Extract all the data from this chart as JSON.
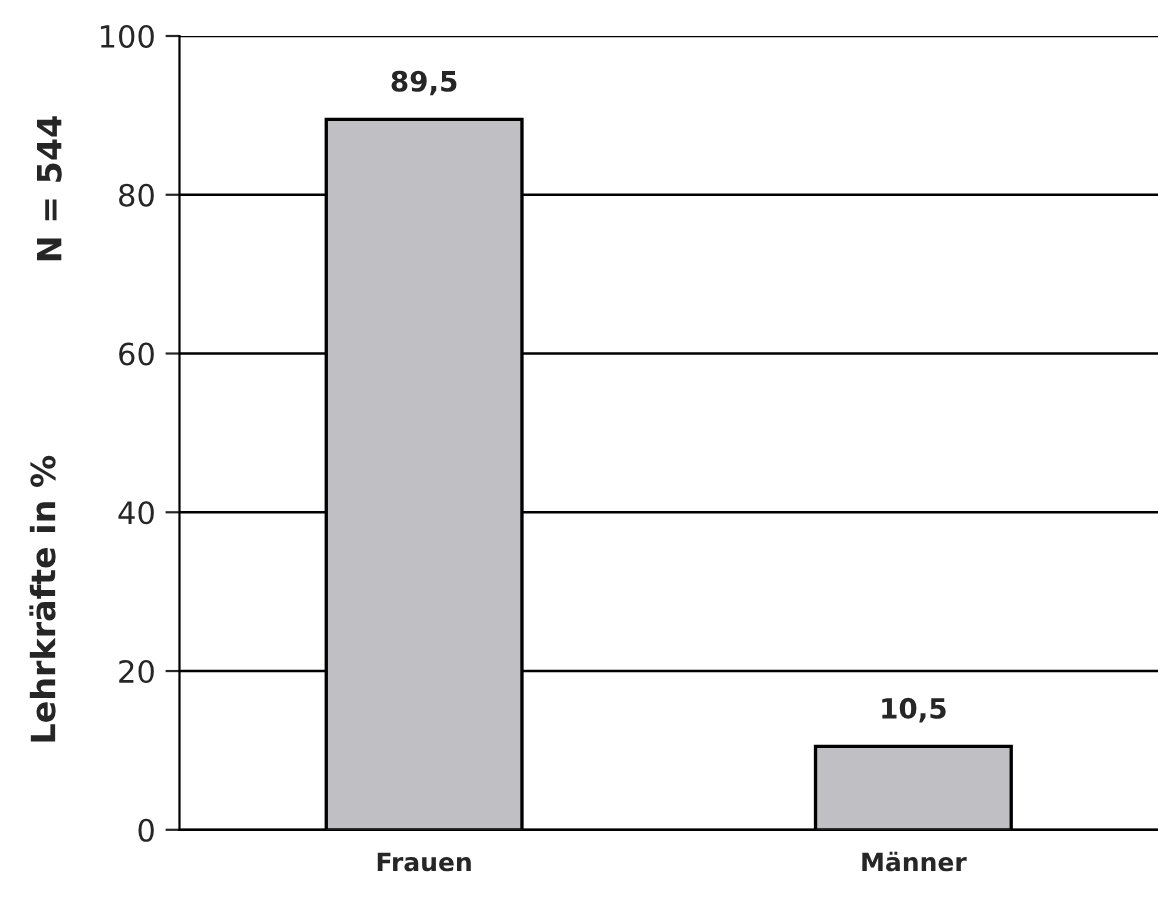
{
  "chart_data": {
    "type": "bar",
    "categories": [
      "Frauen",
      "Männer"
    ],
    "values": [
      89.5,
      10.5
    ],
    "value_labels": [
      "89,5",
      "10,5"
    ],
    "color": "#c0c0c4",
    "ylabel": "Lehrkräfte in %",
    "annotations": [
      "N = 544"
    ],
    "ylim": [
      0,
      100
    ],
    "yticks": [
      0,
      20,
      40,
      60,
      80,
      100
    ],
    "grid": "y"
  }
}
